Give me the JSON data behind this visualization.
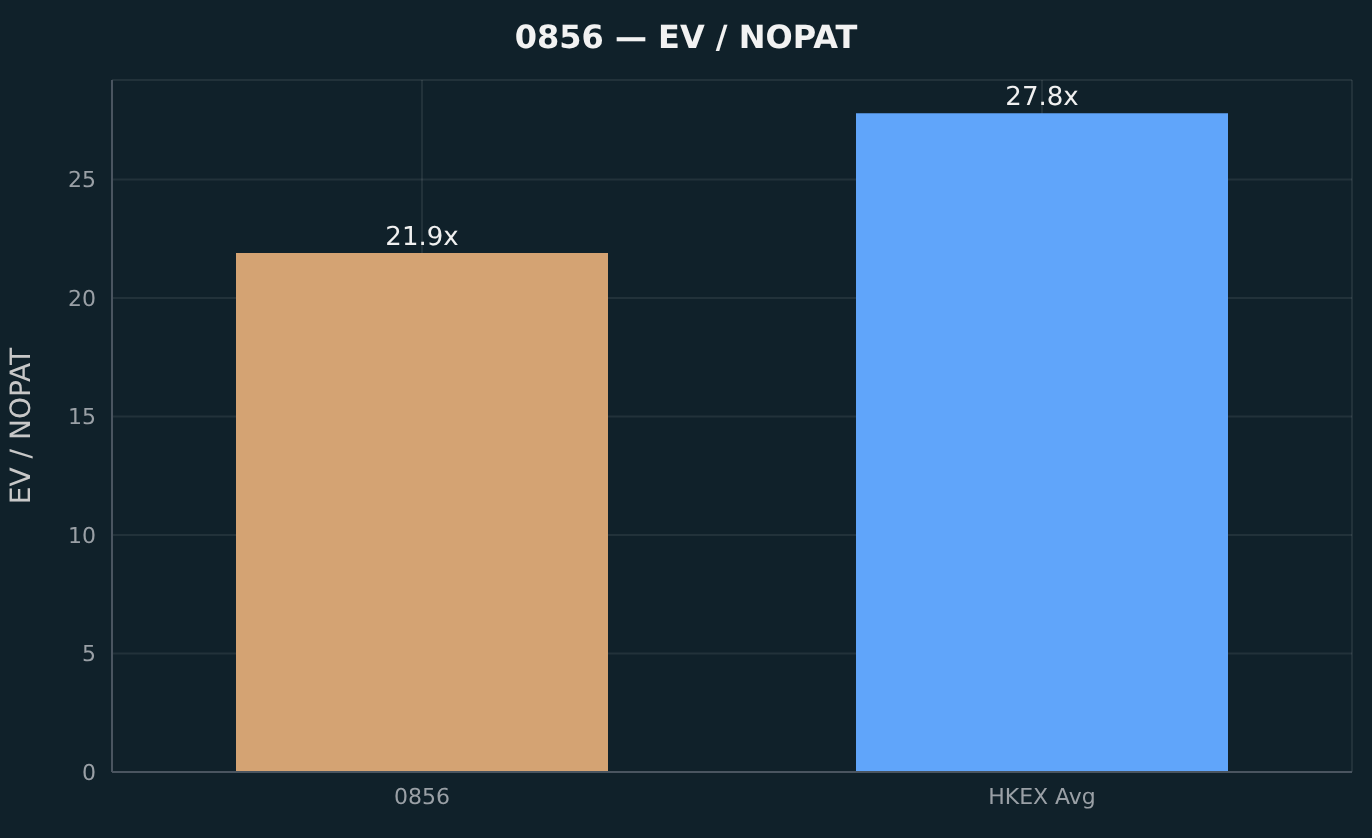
{
  "chart_data": {
    "type": "bar",
    "title": "0856 — EV / NOPAT",
    "ylabel": "EV / NOPAT",
    "categories": [
      "0856",
      "HKEX Avg"
    ],
    "values": [
      21.9,
      27.8
    ],
    "colors": [
      "#d4a373",
      "#60a5fa"
    ],
    "value_labels": [
      "21.9x",
      "27.8x"
    ],
    "ylim": [
      0,
      29.2
    ],
    "yticks": [
      0,
      5,
      10,
      15,
      20,
      25
    ],
    "grid": true
  }
}
